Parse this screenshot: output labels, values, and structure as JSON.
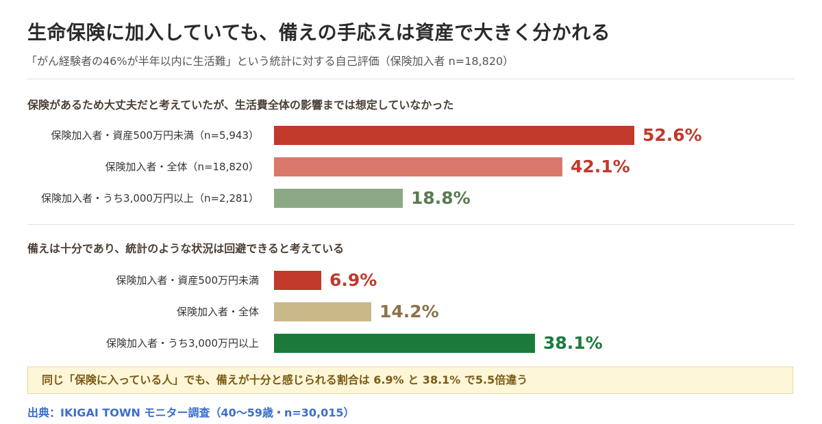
{
  "title": "生命保険に加入していても、備えの手応えは資産で大きく分かれる",
  "subtitle": "「がん経験者の46%が半年以内に生活難」という統計に対する自己評価（保険加入者 n=18,820）",
  "chart_data": [
    {
      "type": "bar",
      "orientation": "horizontal",
      "title": "保険があるため大丈夫だと考えていたが、生活費全体の影響までは想定していなかった",
      "categories": [
        "保険加入者・資産500万円未満（n=5,943）",
        "保険加入者・全体（n=18,820）",
        "保険加入者・うち3,000万円以上（n=2,281）"
      ],
      "values": [
        52.6,
        42.1,
        18.8
      ],
      "value_labels": [
        "52.6%",
        "42.1%",
        "18.8%"
      ],
      "colors": [
        "#c0392b",
        "#d9796b",
        "#8ca985"
      ],
      "label_colors": [
        "#c0392b",
        "#c0392b",
        "#5a7a52"
      ],
      "xlim": [
        0,
        100
      ],
      "unit": "%"
    },
    {
      "type": "bar",
      "orientation": "horizontal",
      "title": "備えは十分であり、統計のような状況は回避できると考えている",
      "categories": [
        "保険加入者・資産500万円未満",
        "保険加入者・全体",
        "保険加入者・うち3,000万円以上"
      ],
      "values": [
        6.9,
        14.2,
        38.1
      ],
      "value_labels": [
        "6.9%",
        "14.2%",
        "38.1%"
      ],
      "colors": [
        "#c0392b",
        "#c9b888",
        "#1a7a3c"
      ],
      "label_colors": [
        "#c0392b",
        "#8a7346",
        "#1a7a3c"
      ],
      "xlim": [
        0,
        100
      ],
      "unit": "%"
    }
  ],
  "note": "同じ「保険に入っている人」でも、備えが十分と感じられる割合は 6.9% と 38.1% で5.5倍違う",
  "source": "出典：IKIGAI TOWN モニター調査（40〜59歳・n=30,015）"
}
